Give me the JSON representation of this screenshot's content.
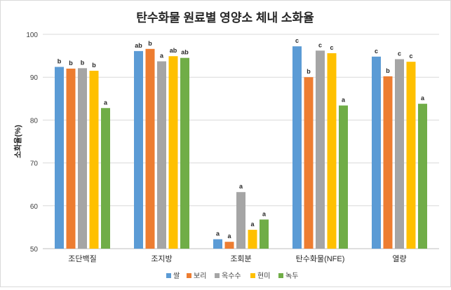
{
  "chart_data": {
    "type": "bar",
    "title": "탄수화물 원료별 영양소 체내 소화율",
    "ylabel": "소화율(%)",
    "xlabel": "",
    "ylim": [
      50,
      100
    ],
    "yticks": [
      50,
      60,
      70,
      80,
      90,
      100
    ],
    "grid": true,
    "legend": "bottom",
    "categories": [
      "조단백질",
      "조지방",
      "조회분",
      "탄수화물(NFE)",
      "열량"
    ],
    "series": [
      {
        "name": "쌀",
        "color": "#5b9bd5",
        "values": [
          92.4,
          96.1,
          52.2,
          97.2,
          94.8
        ],
        "labels": [
          "b",
          "ab",
          "a",
          "c",
          "c"
        ]
      },
      {
        "name": "보리",
        "color": "#ed7d31",
        "values": [
          92.0,
          96.6,
          51.6,
          90.0,
          90.2
        ],
        "labels": [
          "b",
          "b",
          "a",
          "b",
          "b"
        ]
      },
      {
        "name": "옥수수",
        "color": "#a5a5a5",
        "values": [
          92.1,
          93.7,
          63.2,
          96.2,
          94.2
        ],
        "labels": [
          "b",
          "a",
          "a",
          "c",
          "c"
        ]
      },
      {
        "name": "현미",
        "color": "#ffc000",
        "values": [
          91.5,
          94.9,
          54.4,
          95.6,
          93.6
        ],
        "labels": [
          "b",
          "ab",
          "a",
          "c",
          "c"
        ]
      },
      {
        "name": "녹두",
        "color": "#70ad47",
        "values": [
          82.8,
          94.5,
          56.8,
          83.4,
          83.8
        ],
        "labels": [
          "a",
          "ab",
          "a",
          "a",
          "a"
        ]
      }
    ]
  }
}
